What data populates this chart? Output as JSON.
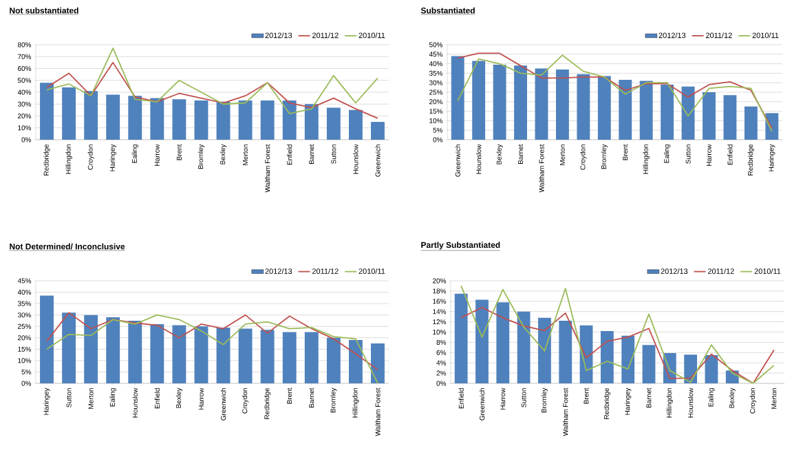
{
  "chart_data": [
    {
      "type": "bar",
      "title": "Not substantiated",
      "categories": [
        "Redbridge",
        "Hillingdon",
        "Croydon",
        "Haringey",
        "Ealing",
        "Harrow",
        "Brent",
        "Bromley",
        "Bexley",
        "Merton",
        "Waltham Forest",
        "Enfield",
        "Barnet",
        "Sutton",
        "Hounslow",
        "Greenwich"
      ],
      "series": [
        {
          "name": "2012/13",
          "type": "bar",
          "color": "#4f81bd",
          "values": [
            48,
            44,
            41,
            38,
            37,
            35,
            34,
            33,
            32,
            33,
            33,
            33,
            30,
            27,
            25,
            15
          ]
        },
        {
          "name": "2011/12",
          "type": "line",
          "color": "#c0504d",
          "values": [
            44,
            56,
            37,
            65,
            36,
            32,
            39,
            35,
            31,
            37,
            48,
            31,
            27,
            35,
            26,
            18
          ]
        },
        {
          "name": "2010/11",
          "type": "line",
          "color": "#9bbb59",
          "values": [
            42,
            47,
            37,
            77,
            34,
            32,
            50,
            40,
            30,
            31,
            48,
            22,
            26,
            54,
            31,
            52
          ]
        }
      ],
      "ylim": [
        0,
        80
      ],
      "yticks": [
        {
          "value": 0,
          "label": "0%"
        },
        {
          "value": 10,
          "label": "10%"
        },
        {
          "value": 20,
          "label": "20%"
        },
        {
          "value": 30,
          "label": "30%"
        },
        {
          "value": 40,
          "label": "40%"
        },
        {
          "value": 50,
          "label": "50%"
        },
        {
          "value": 60,
          "label": "60%"
        },
        {
          "value": 70,
          "label": "70%"
        },
        {
          "value": 80,
          "label": "80%"
        }
      ],
      "grid": "y",
      "legend": "top right",
      "marker": "none"
    },
    {
      "type": "bar",
      "title": "Substantiated",
      "categories": [
        "Greenwich",
        "Hounslow",
        "Bexley",
        "Barnet",
        "Waltham Forest",
        "Merton",
        "Croydon",
        "Bromley",
        "Brent",
        "Hillingdon",
        "Ealing",
        "Sutton",
        "Harrow",
        "Enfield",
        "Redbridge",
        "Haringey"
      ],
      "series": [
        {
          "name": "2012/13",
          "type": "bar",
          "color": "#4f81bd",
          "values": [
            44,
            41.5,
            39.5,
            39,
            37.5,
            37,
            34.5,
            33.5,
            31.5,
            31,
            29,
            28,
            25,
            23.5,
            17.5,
            14
          ]
        },
        {
          "name": "2011/12",
          "type": "line",
          "color": "#c0504d",
          "values": [
            43,
            45.5,
            45.5,
            39,
            32.5,
            32.5,
            33,
            33,
            26,
            29.5,
            29.5,
            22.5,
            29,
            30.5,
            26,
            6
          ]
        },
        {
          "name": "2010/11",
          "type": "line",
          "color": "#9bbb59",
          "values": [
            20.5,
            42.5,
            40,
            35,
            34,
            44.5,
            36,
            33,
            24,
            30,
            30,
            12.5,
            27,
            28,
            27,
            4.5
          ]
        }
      ],
      "ylim": [
        0,
        50
      ],
      "yticks": [
        {
          "value": 0,
          "label": "0%"
        },
        {
          "value": 5,
          "label": "5%"
        },
        {
          "value": 10,
          "label": "10%"
        },
        {
          "value": 15,
          "label": "15%"
        },
        {
          "value": 20,
          "label": "20%"
        },
        {
          "value": 25,
          "label": "25%"
        },
        {
          "value": 30,
          "label": "30%"
        },
        {
          "value": 35,
          "label": "35%"
        },
        {
          "value": 40,
          "label": "40%"
        },
        {
          "value": 45,
          "label": "45%"
        },
        {
          "value": 50,
          "label": "50%"
        }
      ],
      "grid": "y",
      "legend": "top right",
      "marker": "none"
    },
    {
      "type": "bar",
      "title": "Not Determined/ Inconclusive",
      "categories": [
        "Haringey",
        "Sutton",
        "Merton",
        "Ealing",
        "Hounslow",
        "Enfield",
        "Bexley",
        "Harrow",
        "Greenwich",
        "Croydon",
        "Redbridge",
        "Brent",
        "Barnet",
        "Bromley",
        "Hillingdon",
        "Waltham Forest"
      ],
      "series": [
        {
          "name": "2012/13",
          "type": "bar",
          "color": "#4f81bd",
          "values": [
            38.5,
            31,
            30,
            29,
            27.5,
            26,
            25.5,
            25,
            24.5,
            24,
            23.5,
            22.5,
            22.5,
            20,
            19,
            17.5
          ]
        },
        {
          "name": "2011/12",
          "type": "line",
          "color": "#c0504d",
          "values": [
            18.5,
            31,
            24,
            28,
            26.5,
            25.5,
            20,
            26,
            24,
            30,
            22,
            29.5,
            24,
            19.5,
            13,
            6
          ]
        },
        {
          "name": "2010/11",
          "type": "line",
          "color": "#9bbb59",
          "values": [
            15,
            21.5,
            21,
            28,
            26,
            30,
            28,
            23,
            17,
            26,
            27,
            24,
            24.5,
            20.5,
            19.5,
            0
          ]
        }
      ],
      "ylim": [
        0,
        45
      ],
      "yticks": [
        {
          "value": 0,
          "label": "0%"
        },
        {
          "value": 5,
          "label": "5%"
        },
        {
          "value": 10,
          "label": "10%"
        },
        {
          "value": 15,
          "label": "15%"
        },
        {
          "value": 20,
          "label": "20%"
        },
        {
          "value": 25,
          "label": "25%"
        },
        {
          "value": 30,
          "label": "30%"
        },
        {
          "value": 35,
          "label": "35%"
        },
        {
          "value": 40,
          "label": "40%"
        },
        {
          "value": 45,
          "label": "45%"
        }
      ],
      "grid": "y",
      "legend": "top right",
      "marker": "none"
    },
    {
      "type": "bar",
      "title": "Partly Substantiated",
      "categories": [
        "Enfield",
        "Greenwich",
        "Harrow",
        "Sutton",
        "Bromley",
        "Waltham Forest",
        "Brent",
        "Redbridge",
        "Haringey",
        "Barnet",
        "Hillingdon",
        "Hounslow",
        "Ealing",
        "Bexley",
        "Croydon",
        "Merton"
      ],
      "series": [
        {
          "name": "2012/13",
          "type": "bar",
          "color": "#4f81bd",
          "values": [
            17.5,
            16.3,
            15.8,
            14,
            12.8,
            12.2,
            11.3,
            10.2,
            9.3,
            7.5,
            5.9,
            5.6,
            5.5,
            2.5,
            0,
            0
          ]
        },
        {
          "name": "2011/12",
          "type": "line",
          "color": "#c0504d",
          "values": [
            12.8,
            14.8,
            12.8,
            11.2,
            10.3,
            13.7,
            5,
            8.2,
            9,
            10.7,
            1,
            1,
            5.7,
            2.5,
            0,
            6.5
          ]
        },
        {
          "name": "2010/11",
          "type": "line",
          "color": "#9bbb59",
          "values": [
            19,
            9,
            18.3,
            11,
            6.3,
            18.5,
            2.5,
            4.3,
            2.8,
            13.5,
            2.5,
            0.2,
            7.5,
            2,
            0,
            3.5
          ]
        }
      ],
      "ylim": [
        0,
        20
      ],
      "yticks": [
        {
          "value": 0,
          "label": "0%"
        },
        {
          "value": 2,
          "label": "2%"
        },
        {
          "value": 4,
          "label": "4%"
        },
        {
          "value": 6,
          "label": "6%"
        },
        {
          "value": 8,
          "label": "8%"
        },
        {
          "value": 10,
          "label": "10%"
        },
        {
          "value": 12,
          "label": "12%"
        },
        {
          "value": 14,
          "label": "14%"
        },
        {
          "value": 16,
          "label": "16%"
        },
        {
          "value": 18,
          "label": "18%"
        },
        {
          "value": 20,
          "label": "20%"
        }
      ],
      "grid": "y",
      "legend": "top right",
      "marker": "none"
    }
  ]
}
